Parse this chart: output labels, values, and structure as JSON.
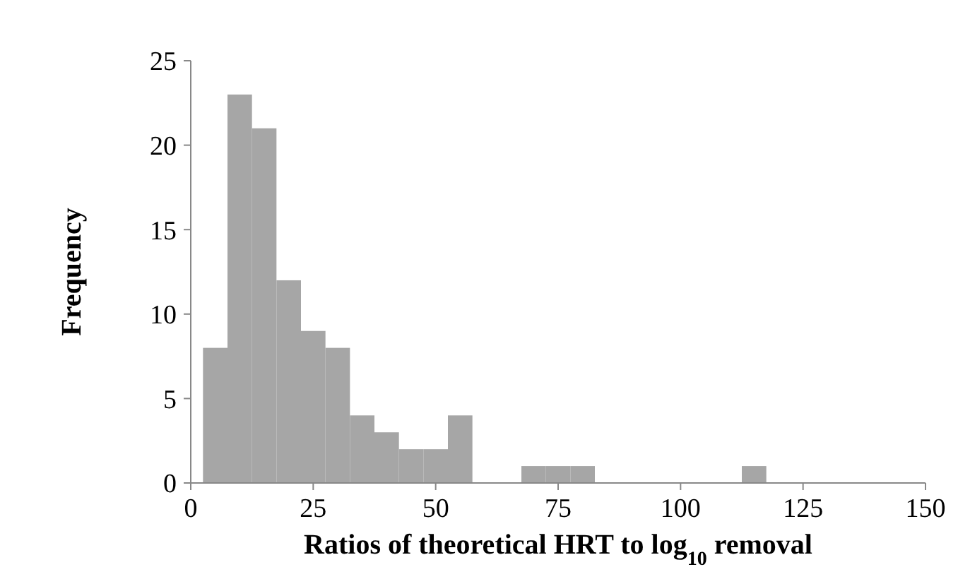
{
  "chart_data": {
    "type": "histogram",
    "xlabel": "Ratios of theoretical HRT to log$_{10}$ removal",
    "ylabel": "Frequency",
    "bins": [
      2.5,
      7.5,
      12.5,
      17.5,
      22.5,
      27.5,
      32.5,
      37.5,
      42.5,
      47.5,
      52.5,
      57.5,
      62.5,
      67.5,
      72.5,
      77.5,
      82.5,
      87.5,
      92.5,
      97.5,
      102.5,
      107.5,
      112.5,
      117.5
    ],
    "values": [
      8,
      23,
      21,
      12,
      9,
      8,
      4,
      3,
      2,
      2,
      4,
      0,
      0,
      1,
      1,
      1,
      0,
      0,
      0,
      0,
      0,
      0,
      1
    ],
    "color": "#a6a6a6",
    "xlim": [
      0,
      150
    ],
    "xticks": [
      0,
      25,
      50,
      75,
      100,
      125,
      150
    ],
    "ylim": [
      0,
      25
    ],
    "yticks": [
      0,
      5,
      10,
      15,
      20,
      25
    ],
    "grid": false
  }
}
